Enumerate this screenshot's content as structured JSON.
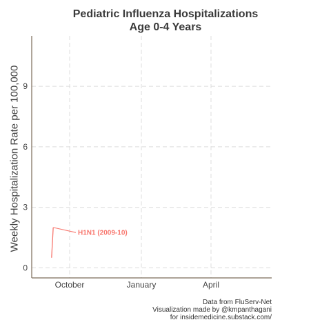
{
  "chart_data": {
    "type": "line",
    "title": "Pediatric Influenza Hospitalizations",
    "subtitle": "Age 0-4 Years",
    "ylabel": "Weekly Hospitalization Rate per 100,000",
    "xlabel": "",
    "x_tick_labels": [
      "October",
      "January",
      "April"
    ],
    "y_ticks": [
      0,
      3,
      6,
      9
    ],
    "ylim": [
      -0.5,
      11.5
    ],
    "grid": true,
    "series": [
      {
        "name": "H1N1 (2009-10)",
        "color": "#f8766d",
        "x_weeks_since_sep1": [
          1.0,
          1.3
        ],
        "values": [
          0.5,
          2.0
        ]
      }
    ],
    "label_end_value": 1.75
  },
  "credits": {
    "line1": "Data from FluServ-Net",
    "line2": "Visualization made by @kmpanthagani",
    "line3": "for insidemedicine.substack.com/"
  }
}
